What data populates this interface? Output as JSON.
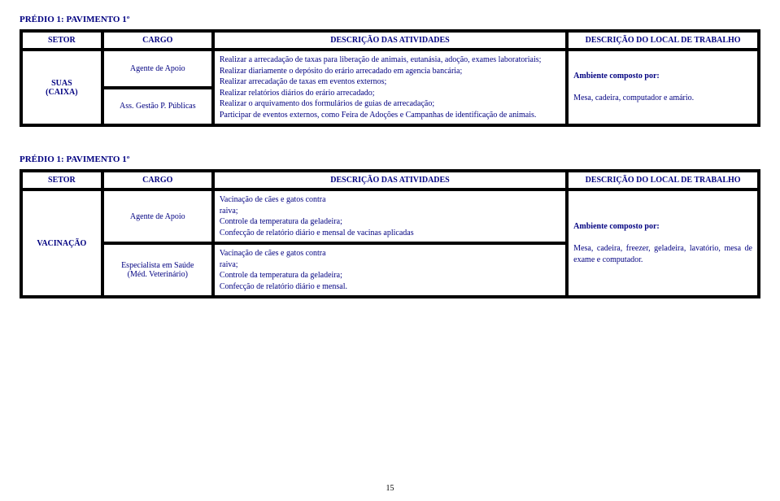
{
  "section1": {
    "title": "PRÉDIO 1: PAVIMENTO 1º",
    "headers": {
      "setor": "SETOR",
      "cargo": "CARGO",
      "desc": "DESCRIÇÃO DAS ATIVIDADES",
      "local": "DESCRIÇÃO DO LOCAL DE TRABALHO"
    },
    "setor_line1": "SUAS",
    "setor_line2": "(CAIXA)",
    "cargo1": "Agente de Apoio",
    "cargo2": "Ass. Gestão P. Públicas",
    "desc": "Realizar a arrecadação de taxas para liberação de animais, eutanásia, adoção, exames laboratoriais;\nRealizar diariamente o depósito do erário arrecadado em agencia bancária;\nRealizar arrecadação de taxas em eventos externos;\nRealizar relatórios diários do erário arrecadado;\nRealizar o arquivamento dos formulários de guias de arrecadação;\nParticipar de eventos externos, como Feira de Adoções e Campanhas de identificação de animais.",
    "local_label": "Ambiente composto por:",
    "local_body": "Mesa, cadeira, computador e amário."
  },
  "section2": {
    "title": "PRÉDIO 1: PAVIMENTO 1º",
    "headers": {
      "setor": "SETOR",
      "cargo": "CARGO",
      "desc": "DESCRIÇÃO DAS ATIVIDADES",
      "local": "DESCRIÇÃO DO LOCAL DE TRABALHO"
    },
    "setor": "VACINAÇÃO",
    "cargo1": "Agente de Apoio",
    "cargo2_line1": "Especialista em Saúde",
    "cargo2_line2": "(Méd. Veterinário)",
    "desc1": "Vacinação de cães e gatos contra\nraiva;\nControle da temperatura da geladeira;\nConfecção de relatório diário e mensal de vacinas aplicadas",
    "desc2": "Vacinação de cães e gatos contra\nraiva;\nControle da temperatura da geladeira;\nConfecção de relatório diário e mensal.",
    "local_label": "Ambiente composto por:",
    "local_body": "Mesa, cadeira, freezer, geladeira, lavatório, mesa de exame e computador."
  },
  "page_number": "15"
}
